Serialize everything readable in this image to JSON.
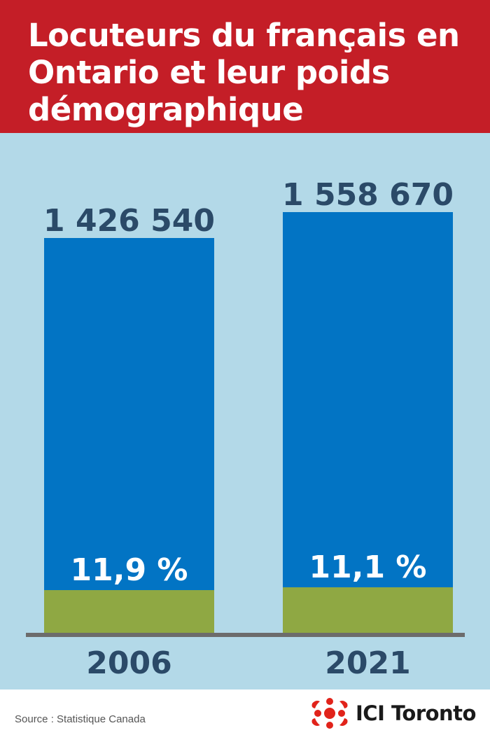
{
  "title": "Locuteurs du français en Ontario et leur poids démographique",
  "source": "Source : Statistique Canada",
  "brand": "ICI Toronto",
  "brand_icon": "radio-canada-gem-icon",
  "colors": {
    "header": "#c41e27",
    "background": "#b3d9e8",
    "speakers_bar": "#0274c4",
    "share_bar": "#8fa843",
    "value_label": "#2b4a68",
    "axis": "#6c6c6c"
  },
  "chart_data": {
    "type": "bar",
    "stacked": true,
    "title": "Locuteurs du français en Ontario et leur poids démographique",
    "xlabel": "",
    "ylabel": "",
    "categories": [
      "2006",
      "2021"
    ],
    "series": [
      {
        "values": [
          1426540,
          1558670
        ],
        "labels": [
          "1 426 540",
          "1 558 670"
        ],
        "color": "#0274c4"
      },
      {
        "values": [
          11.9,
          11.1
        ],
        "labels": [
          "11,9 %",
          "11,1 %"
        ],
        "color": "#8fa843"
      }
    ],
    "ylim": [
      0,
      1750000
    ],
    "grid": false,
    "legend": "none"
  }
}
